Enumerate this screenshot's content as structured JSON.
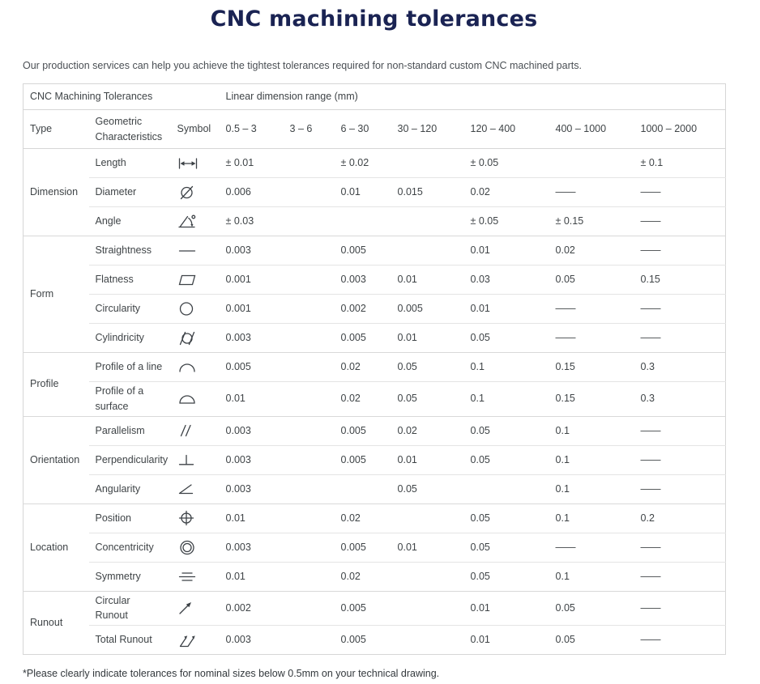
{
  "page": {
    "title": "CNC machining tolerances",
    "intro": "Our production services can help you achieve the tightest tolerances required for non-standard custom CNC machined parts.",
    "footnote": "*Please clearly indicate tolerances for nominal sizes below 0.5mm on your technical drawing."
  },
  "colors": {
    "title": "#1a2353",
    "body_text": "#3f4447",
    "border_outer": "#d6d6d6",
    "border_inner": "#e4e4e4"
  },
  "table": {
    "header_group_left": "CNC Machining Tolerances",
    "header_group_right": "Linear dimension range  (mm)",
    "columns": [
      "Type",
      "Geometric Characteristics",
      "Symbol",
      "0.5 – 3",
      "3 – 6",
      "6 – 30",
      "30 – 120",
      "120 – 400",
      "400 – 1000",
      "1000 – 2000"
    ],
    "groups": [
      {
        "type": "Dimension",
        "rows": [
          {
            "characteristic": "Length",
            "symbol_icon": "length-icon",
            "values": [
              "± 0.01",
              "",
              "± 0.02",
              "",
              "± 0.05",
              "",
              "± 0.1"
            ]
          },
          {
            "characteristic": "Diameter",
            "symbol_icon": "diameter-icon",
            "values": [
              "0.006",
              "",
              "0.01",
              "0.015",
              "0.02",
              "——",
              "——"
            ]
          },
          {
            "characteristic": "Angle",
            "symbol_icon": "angle-icon",
            "values": [
              "± 0.03",
              "",
              "",
              "",
              "± 0.05",
              "± 0.15",
              "——"
            ]
          }
        ]
      },
      {
        "type": "Form",
        "rows": [
          {
            "characteristic": "Straightness",
            "symbol_icon": "straightness-icon",
            "values": [
              "0.003",
              "",
              "0.005",
              "",
              "0.01",
              "0.02",
              "——"
            ]
          },
          {
            "characteristic": "Flatness",
            "symbol_icon": "flatness-icon",
            "values": [
              "0.001",
              "",
              "0.003",
              "0.01",
              "0.03",
              "0.05",
              "0.15"
            ]
          },
          {
            "characteristic": "Circularity",
            "symbol_icon": "circularity-icon",
            "values": [
              "0.001",
              "",
              "0.002",
              "0.005",
              "0.01",
              "——",
              "——"
            ]
          },
          {
            "characteristic": "Cylindricity",
            "symbol_icon": "cylindricity-icon",
            "values": [
              "0.003",
              "",
              "0.005",
              "0.01",
              "0.05",
              "——",
              "——"
            ]
          }
        ]
      },
      {
        "type": "Profile",
        "rows": [
          {
            "characteristic": "Profile of a line",
            "symbol_icon": "profile-line-icon",
            "values": [
              "0.005",
              "",
              "0.02",
              "0.05",
              "0.1",
              "0.15",
              "0.3"
            ]
          },
          {
            "characteristic": "Profile of a surface",
            "symbol_icon": "profile-surface-icon",
            "values": [
              "0.01",
              "",
              "0.02",
              "0.05",
              "0.1",
              "0.15",
              "0.3"
            ]
          }
        ]
      },
      {
        "type": "Orientation",
        "rows": [
          {
            "characteristic": "Parallelism",
            "symbol_icon": "parallelism-icon",
            "values": [
              "0.003",
              "",
              "0.005",
              "0.02",
              "0.05",
              "0.1",
              "——"
            ]
          },
          {
            "characteristic": "Perpendicularity",
            "symbol_icon": "perpendicularity-icon",
            "values": [
              "0.003",
              "",
              "0.005",
              "0.01",
              "0.05",
              "0.1",
              "——"
            ]
          },
          {
            "characteristic": "Angularity",
            "symbol_icon": "angularity-icon",
            "values": [
              "0.003",
              "",
              "",
              "0.05",
              "",
              "0.1",
              "——"
            ]
          }
        ]
      },
      {
        "type": "Location",
        "rows": [
          {
            "characteristic": "Position",
            "symbol_icon": "position-icon",
            "values": [
              "0.01",
              "",
              "0.02",
              "",
              "0.05",
              "0.1",
              "0.2"
            ]
          },
          {
            "characteristic": "Concentricity",
            "symbol_icon": "concentricity-icon",
            "values": [
              "0.003",
              "",
              "0.005",
              "0.01",
              "0.05",
              "——",
              "——"
            ]
          },
          {
            "characteristic": "Symmetry",
            "symbol_icon": "symmetry-icon",
            "values": [
              "0.01",
              "",
              "0.02",
              "",
              "0.05",
              "0.1",
              "——"
            ]
          }
        ]
      },
      {
        "type": "Runout",
        "rows": [
          {
            "characteristic": "Circular Runout",
            "symbol_icon": "circular-runout-icon",
            "values": [
              "0.002",
              "",
              "0.005",
              "",
              "0.01",
              "0.05",
              "——"
            ]
          },
          {
            "characteristic": "Total Runout",
            "symbol_icon": "total-runout-icon",
            "values": [
              "0.003",
              "",
              "0.005",
              "",
              "0.01",
              "0.05",
              "——"
            ]
          }
        ]
      }
    ]
  }
}
